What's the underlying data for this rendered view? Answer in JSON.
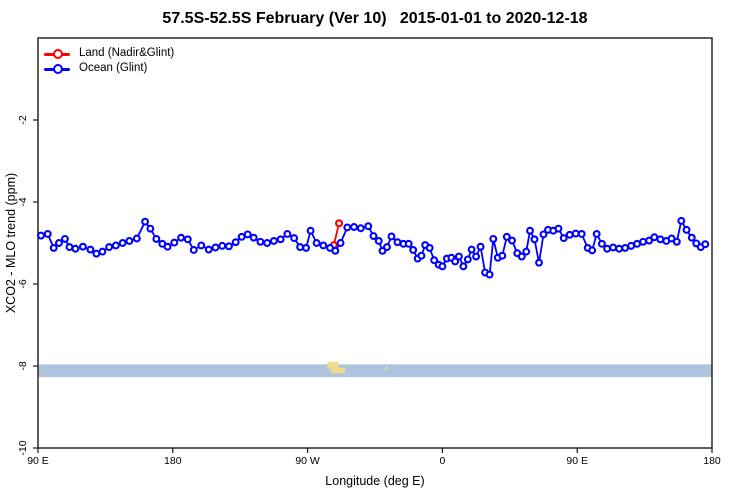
{
  "title": "57.5S-52.5S February (Ver 10)   2015-01-01 to 2020-12-18",
  "legend": {
    "items": [
      {
        "label": "Land (Nadir&Glint)",
        "color": "#ff0000"
      },
      {
        "label": "Ocean (Glint)",
        "color": "#0000ff"
      }
    ]
  },
  "chart_data": {
    "type": "line",
    "title": "57.5S-52.5S February (Ver 10)   2015-01-01 to 2020-12-18",
    "xlabel": "Longitude (deg E)",
    "ylabel": "XCO2 - MLO trend (ppm)",
    "xlim": [
      90,
      540
    ],
    "ylim": [
      -10,
      0
    ],
    "grid": false,
    "legend_position": "top-left-inside",
    "x_ticks": [
      {
        "value": 90,
        "label": "90 E"
      },
      {
        "value": 180,
        "label": "180"
      },
      {
        "value": 270,
        "label": "90 W"
      },
      {
        "value": 360,
        "label": "0"
      },
      {
        "value": 450,
        "label": "90 E"
      },
      {
        "value": 540,
        "label": "180"
      }
    ],
    "y_ticks": [
      {
        "value": -10,
        "label": "-10"
      },
      {
        "value": -8,
        "label": "-8"
      },
      {
        "value": -6,
        "label": "-6"
      },
      {
        "value": -4,
        "label": "-4"
      },
      {
        "value": -2,
        "label": "-2"
      }
    ],
    "map_strip": {
      "description": "latitude-band strip map drawn across plot near y=-8: ocean band with land patches",
      "ocean_color": "#aec3de",
      "land_color": "#f0dc8a",
      "band_top": -7.96,
      "band_bottom": -8.27,
      "land_patches": [
        {
          "lon_start": 283.0,
          "lon_end": 290.5,
          "top": -7.9,
          "bottom": -8.06
        },
        {
          "lon_start": 285.5,
          "lon_end": 295.0,
          "top": -8.04,
          "bottom": -8.18
        },
        {
          "lon_start": 322.0,
          "lon_end": 323.5,
          "top": -8.02,
          "bottom": -8.1
        }
      ]
    },
    "series": [
      {
        "name": "Land (Nadir&Glint)",
        "color": "#ff0000",
        "marker": "open-circle",
        "points": [
          [
            287.5,
            -5.05
          ],
          [
            291.0,
            -4.52
          ]
        ]
      },
      {
        "name": "Ocean (Glint)",
        "color": "#0000ff",
        "marker": "open-circle",
        "points": [
          [
            92.0,
            -4.82
          ],
          [
            96.5,
            -4.78
          ],
          [
            100.5,
            -5.12
          ],
          [
            104.0,
            -5.0
          ],
          [
            108.0,
            -4.9
          ],
          [
            111.0,
            -5.1
          ],
          [
            115.0,
            -5.14
          ],
          [
            120.0,
            -5.09
          ],
          [
            125.0,
            -5.16
          ],
          [
            129.0,
            -5.26
          ],
          [
            133.0,
            -5.21
          ],
          [
            137.5,
            -5.1
          ],
          [
            142.0,
            -5.06
          ],
          [
            146.5,
            -5.0
          ],
          [
            151.0,
            -4.95
          ],
          [
            156.0,
            -4.89
          ],
          [
            161.5,
            -4.48
          ],
          [
            165.0,
            -4.65
          ],
          [
            169.0,
            -4.9
          ],
          [
            173.0,
            -5.02
          ],
          [
            176.5,
            -5.09
          ],
          [
            181.0,
            -4.99
          ],
          [
            185.5,
            -4.87
          ],
          [
            190.0,
            -4.91
          ],
          [
            194.0,
            -5.17
          ],
          [
            199.0,
            -5.06
          ],
          [
            204.0,
            -5.16
          ],
          [
            208.5,
            -5.11
          ],
          [
            213.0,
            -5.07
          ],
          [
            217.5,
            -5.08
          ],
          [
            222.0,
            -4.98
          ],
          [
            226.0,
            -4.85
          ],
          [
            230.0,
            -4.79
          ],
          [
            234.0,
            -4.87
          ],
          [
            238.5,
            -4.97
          ],
          [
            243.0,
            -5.0
          ],
          [
            247.5,
            -4.95
          ],
          [
            252.0,
            -4.91
          ],
          [
            256.5,
            -4.78
          ],
          [
            261.0,
            -4.88
          ],
          [
            265.0,
            -5.1
          ],
          [
            269.0,
            -5.12
          ],
          [
            272.0,
            -4.7
          ],
          [
            276.0,
            -5.0
          ],
          [
            280.5,
            -5.06
          ],
          [
            285.0,
            -5.12
          ],
          [
            288.5,
            -5.19
          ],
          [
            292.0,
            -5.0
          ],
          [
            296.5,
            -4.62
          ],
          [
            301.0,
            -4.61
          ],
          [
            305.5,
            -4.64
          ],
          [
            310.5,
            -4.59
          ],
          [
            314.0,
            -4.83
          ],
          [
            317.5,
            -4.95
          ],
          [
            320.0,
            -5.19
          ],
          [
            323.0,
            -5.1
          ],
          [
            326.0,
            -4.84
          ],
          [
            330.0,
            -4.98
          ],
          [
            334.0,
            -5.02
          ],
          [
            337.5,
            -5.02
          ],
          [
            340.5,
            -5.17
          ],
          [
            343.5,
            -5.38
          ],
          [
            346.0,
            -5.31
          ],
          [
            348.5,
            -5.05
          ],
          [
            351.5,
            -5.12
          ],
          [
            354.5,
            -5.42
          ],
          [
            357.5,
            -5.53
          ],
          [
            360.0,
            -5.57
          ],
          [
            363.0,
            -5.38
          ],
          [
            366.0,
            -5.36
          ],
          [
            368.5,
            -5.45
          ],
          [
            371.0,
            -5.33
          ],
          [
            374.0,
            -5.57
          ],
          [
            377.0,
            -5.4
          ],
          [
            379.5,
            -5.16
          ],
          [
            382.5,
            -5.33
          ],
          [
            385.5,
            -5.09
          ],
          [
            388.5,
            -5.72
          ],
          [
            391.5,
            -5.77
          ],
          [
            394.0,
            -4.9
          ],
          [
            397.0,
            -5.36
          ],
          [
            400.0,
            -5.31
          ],
          [
            403.0,
            -4.85
          ],
          [
            406.5,
            -4.94
          ],
          [
            410.0,
            -5.25
          ],
          [
            413.0,
            -5.33
          ],
          [
            416.0,
            -5.21
          ],
          [
            418.5,
            -4.7
          ],
          [
            421.5,
            -4.91
          ],
          [
            424.5,
            -5.48
          ],
          [
            427.5,
            -4.79
          ],
          [
            430.5,
            -4.68
          ],
          [
            434.0,
            -4.7
          ],
          [
            437.5,
            -4.65
          ],
          [
            441.0,
            -4.88
          ],
          [
            445.0,
            -4.8
          ],
          [
            449.0,
            -4.77
          ],
          [
            453.0,
            -4.78
          ],
          [
            457.0,
            -5.12
          ],
          [
            460.0,
            -5.18
          ],
          [
            463.0,
            -4.78
          ],
          [
            466.5,
            -5.02
          ],
          [
            470.0,
            -5.14
          ],
          [
            474.0,
            -5.11
          ],
          [
            478.0,
            -5.14
          ],
          [
            482.0,
            -5.12
          ],
          [
            486.0,
            -5.07
          ],
          [
            490.0,
            -5.02
          ],
          [
            494.0,
            -4.97
          ],
          [
            498.0,
            -4.94
          ],
          [
            501.5,
            -4.86
          ],
          [
            505.5,
            -4.91
          ],
          [
            509.5,
            -4.95
          ],
          [
            513.0,
            -4.89
          ],
          [
            516.5,
            -4.97
          ],
          [
            519.5,
            -4.46
          ],
          [
            523.0,
            -4.68
          ],
          [
            526.5,
            -4.87
          ],
          [
            529.5,
            -5.01
          ],
          [
            532.5,
            -5.1
          ],
          [
            535.5,
            -5.03
          ]
        ]
      }
    ]
  },
  "style": {
    "axis_color": "#1a1a1a",
    "tick_label_size": 10.5,
    "marker_radius": 2.9,
    "marker_stroke": 2.1,
    "line_width": 1.8
  }
}
